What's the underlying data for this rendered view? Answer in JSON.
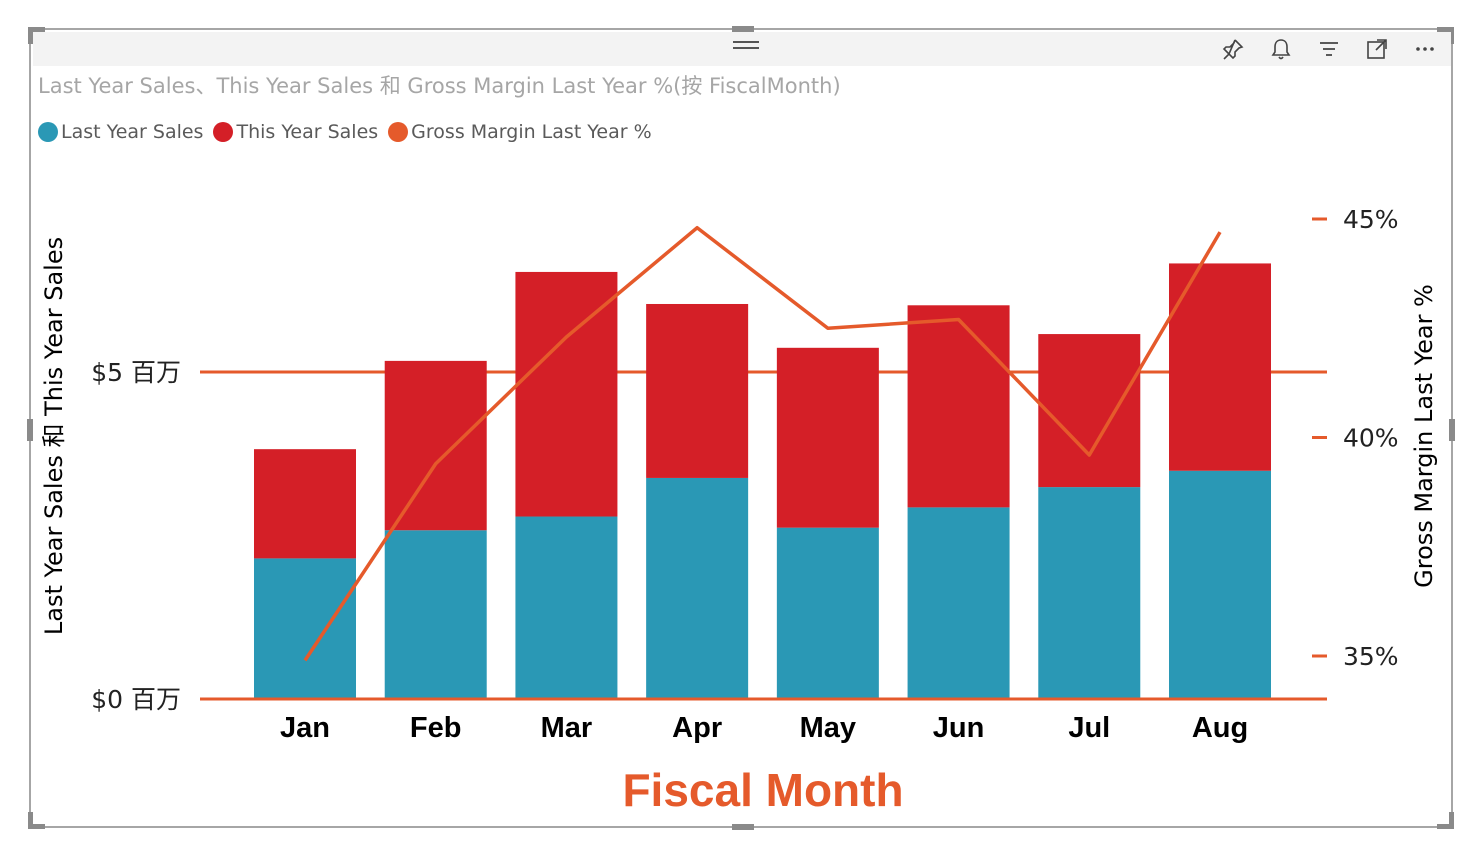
{
  "header": {
    "icons": [
      "pin-icon",
      "bell-icon",
      "filter-icon",
      "focus-mode-icon",
      "more-options-icon"
    ]
  },
  "chart_data": {
    "type": "bar",
    "stacked": true,
    "title": "Last Year Sales、This Year Sales 和 Gross Margin Last Year %(按 FiscalMonth)",
    "xlabel": "Fiscal Month",
    "ylabel": "Last Year Sales 和 This Year Sales",
    "y2label": "Gross Margin Last Year %",
    "categories": [
      "Jan",
      "Feb",
      "Mar",
      "Apr",
      "May",
      "Jun",
      "Jul",
      "Aug"
    ],
    "series": [
      {
        "name": "Last Year Sales",
        "type": "bar",
        "axis": "left",
        "color": "#2a98b5",
        "values": [
          2.15,
          2.58,
          2.79,
          3.38,
          2.62,
          2.93,
          3.24,
          3.49
        ]
      },
      {
        "name": "This Year Sales",
        "type": "bar",
        "axis": "left",
        "color": "#d41f27",
        "values": [
          1.67,
          2.59,
          3.74,
          2.66,
          2.75,
          3.09,
          2.34,
          3.17
        ]
      },
      {
        "name": "Gross Margin Last Year %",
        "type": "line",
        "axis": "right",
        "color": "#e55a2b",
        "values": [
          34.9,
          39.4,
          42.3,
          44.8,
          42.5,
          42.7,
          39.6,
          44.7
        ]
      }
    ],
    "yticks": [
      "$0 百万",
      "$5 百万"
    ],
    "ytick_values": [
      0,
      5
    ],
    "ylim": [
      0,
      6.5
    ],
    "y2ticks": [
      "35%",
      "40%",
      "45%"
    ],
    "y2tick_values": [
      35,
      40,
      45
    ],
    "y2lim": [
      34,
      45
    ],
    "legend_position": "top-left",
    "grid": true,
    "gridline_color": "#e55a2b"
  }
}
